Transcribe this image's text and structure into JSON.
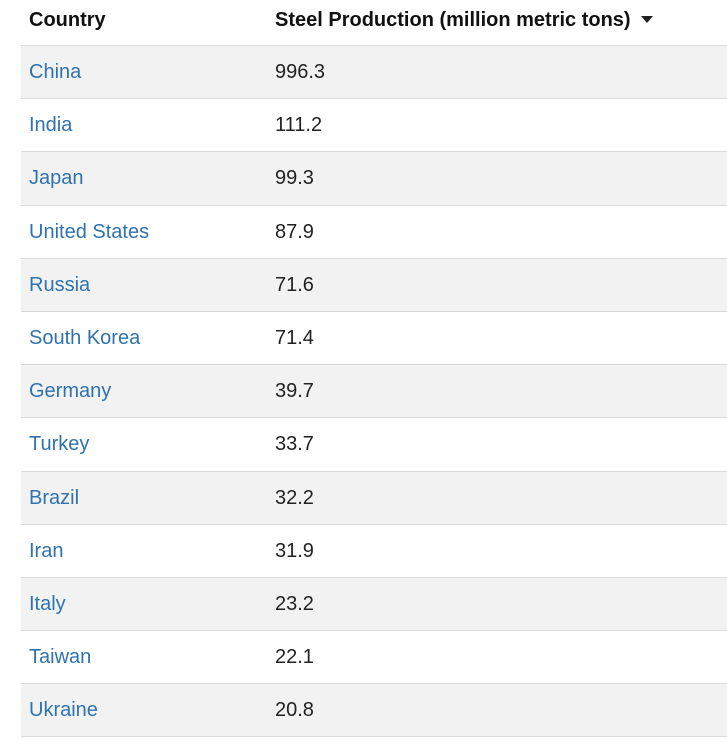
{
  "header": {
    "country_label": "Country",
    "steel_label": "Steel Production (million metric tons)",
    "sort_icon": "caret-down-icon"
  },
  "rows": [
    {
      "country": "China",
      "value": "996.3"
    },
    {
      "country": "India",
      "value": "111.2"
    },
    {
      "country": "Japan",
      "value": "99.3"
    },
    {
      "country": "United States",
      "value": "87.9"
    },
    {
      "country": "Russia",
      "value": "71.6"
    },
    {
      "country": "South Korea",
      "value": "71.4"
    },
    {
      "country": "Germany",
      "value": "39.7"
    },
    {
      "country": "Turkey",
      "value": "33.7"
    },
    {
      "country": "Brazil",
      "value": "32.2"
    },
    {
      "country": "Iran",
      "value": "31.9"
    },
    {
      "country": "Italy",
      "value": "23.2"
    },
    {
      "country": "Taiwan",
      "value": "22.1"
    },
    {
      "country": "Ukraine",
      "value": "20.8"
    }
  ],
  "colors": {
    "link": "#2f72ad",
    "stripe": "#f2f2f2",
    "divider": "#d9d9d9"
  }
}
